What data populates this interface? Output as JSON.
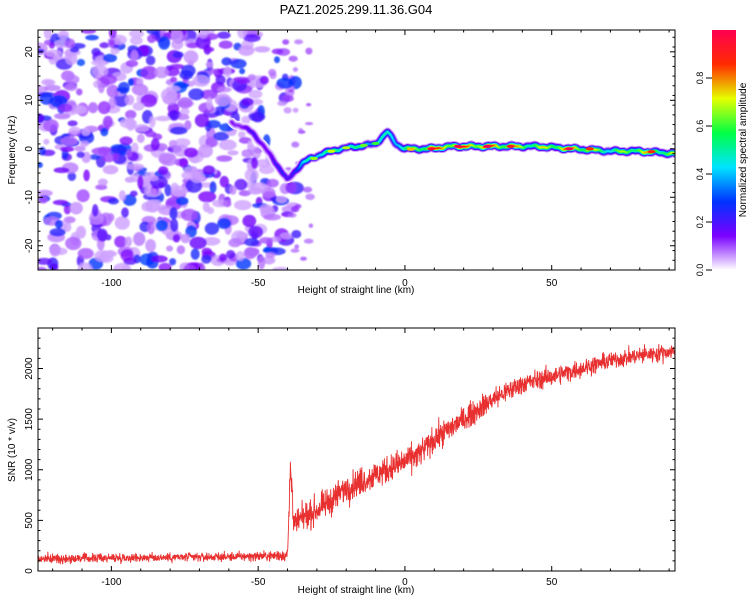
{
  "figure_title": "PAZ1.2025.299.11.36.G04",
  "chart_data": [
    {
      "type": "heatmap",
      "title": "PAZ1.2025.299.11.36.G04",
      "xlabel": "Height of straight line (km)",
      "ylabel": "Frequency (Hz)",
      "xlim": [
        -125,
        92
      ],
      "ylim": [
        -25,
        24.5
      ],
      "xticks": [
        -100,
        -50,
        0,
        50
      ],
      "yticks": [
        20,
        10,
        0,
        -10,
        -20
      ],
      "colorbar": {
        "label": "Normalized spectral amplitude",
        "range": [
          0,
          1
        ],
        "ticks": [
          0.0,
          0.2,
          0.4,
          0.6,
          0.8
        ],
        "tick_labels": [
          "0.0",
          "0.2",
          "0.4",
          "0.6",
          "0.8"
        ],
        "colors": [
          "#ffffff",
          "#7a00ff",
          "#0033ff",
          "#00e5ff",
          "#00ff44",
          "#e5ff00",
          "#ff2a00",
          "#ff0050"
        ]
      },
      "noise_region": {
        "x_range": [
          -125,
          -37
        ],
        "y_range": [
          -25,
          24.5
        ],
        "amplitude_range": [
          0.05,
          0.3
        ]
      },
      "ridge": [
        {
          "x": -59,
          "y": 5.5,
          "amp": 0.15
        },
        {
          "x": -52,
          "y": 3.5,
          "amp": 0.2
        },
        {
          "x": -45,
          "y": -2.0,
          "amp": 0.2
        },
        {
          "x": -40,
          "y": -6.5,
          "amp": 0.25
        },
        {
          "x": -38,
          "y": -5.0,
          "amp": 0.3
        },
        {
          "x": -35,
          "y": -3.0,
          "amp": 0.4
        },
        {
          "x": -32,
          "y": -2.0,
          "amp": 0.55
        },
        {
          "x": -28,
          "y": -1.0,
          "amp": 0.6
        },
        {
          "x": -22,
          "y": 0.0,
          "amp": 0.6
        },
        {
          "x": -16,
          "y": 0.5,
          "amp": 0.55
        },
        {
          "x": -10,
          "y": 1.0,
          "amp": 0.5
        },
        {
          "x": -6,
          "y": 3.5,
          "amp": 0.5
        },
        {
          "x": -3,
          "y": 1.0,
          "amp": 0.55
        },
        {
          "x": 0,
          "y": 0.0,
          "amp": 0.6
        },
        {
          "x": 8,
          "y": 0.0,
          "amp": 0.85
        },
        {
          "x": 16,
          "y": 0.5,
          "amp": 0.9
        },
        {
          "x": 30,
          "y": 0.5,
          "amp": 0.9
        },
        {
          "x": 45,
          "y": 0.5,
          "amp": 0.7
        },
        {
          "x": 57,
          "y": 0.0,
          "amp": 0.9
        },
        {
          "x": 70,
          "y": -0.5,
          "amp": 0.6
        },
        {
          "x": 80,
          "y": -0.5,
          "amp": 0.8
        },
        {
          "x": 92,
          "y": -1.0,
          "amp": 0.7
        }
      ]
    },
    {
      "type": "line",
      "xlabel": "Height of straight line (km)",
      "ylabel": "SNR (10 * v/v)",
      "xlim": [
        -125,
        92
      ],
      "ylim": [
        0,
        2400
      ],
      "xticks": [
        -100,
        -50,
        0,
        50
      ],
      "yticks": [
        0,
        500,
        1000,
        1500,
        2000
      ],
      "series": [
        {
          "name": "SNR",
          "color": "#e83030",
          "x": [
            -125,
            -100,
            -60,
            -45,
            -40,
            -39,
            -38,
            -35,
            -30,
            -25,
            -20,
            -10,
            0,
            5,
            10,
            20,
            30,
            40,
            50,
            60,
            70,
            80,
            92
          ],
          "y": [
            120,
            130,
            140,
            150,
            160,
            950,
            450,
            520,
            600,
            700,
            820,
            950,
            1080,
            1160,
            1300,
            1500,
            1700,
            1850,
            1920,
            2000,
            2080,
            2130,
            2170
          ],
          "noise": [
            80,
            80,
            80,
            90,
            120,
            300,
            220,
            230,
            240,
            250,
            250,
            250,
            250,
            240,
            230,
            220,
            200,
            180,
            170,
            160,
            150,
            150,
            150
          ]
        }
      ]
    }
  ]
}
